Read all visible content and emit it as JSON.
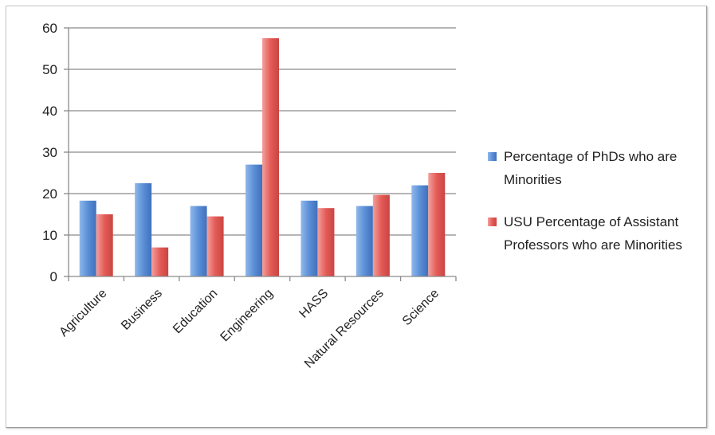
{
  "chart_data": {
    "type": "bar",
    "categories": [
      "Agriculture",
      "Business",
      "Education",
      "Engineering",
      "HASS",
      "Natural Resources",
      "Science"
    ],
    "series": [
      {
        "name": "Percentage of PhDs who are Minorities",
        "values": [
          18.3,
          22.5,
          17,
          27,
          18.3,
          17,
          22
        ],
        "color": "#5b8fd6"
      },
      {
        "name": "USU Percentage of Assistant Professors who are Minorities",
        "values": [
          15,
          7,
          14.5,
          57.5,
          16.5,
          19.7,
          25
        ],
        "color": "#e45b57"
      }
    ],
    "ylim": [
      0,
      60
    ],
    "yticks": [
      "0",
      "10",
      "20",
      "30",
      "40",
      "50",
      "60"
    ],
    "grid": true,
    "legend_position": "right"
  }
}
